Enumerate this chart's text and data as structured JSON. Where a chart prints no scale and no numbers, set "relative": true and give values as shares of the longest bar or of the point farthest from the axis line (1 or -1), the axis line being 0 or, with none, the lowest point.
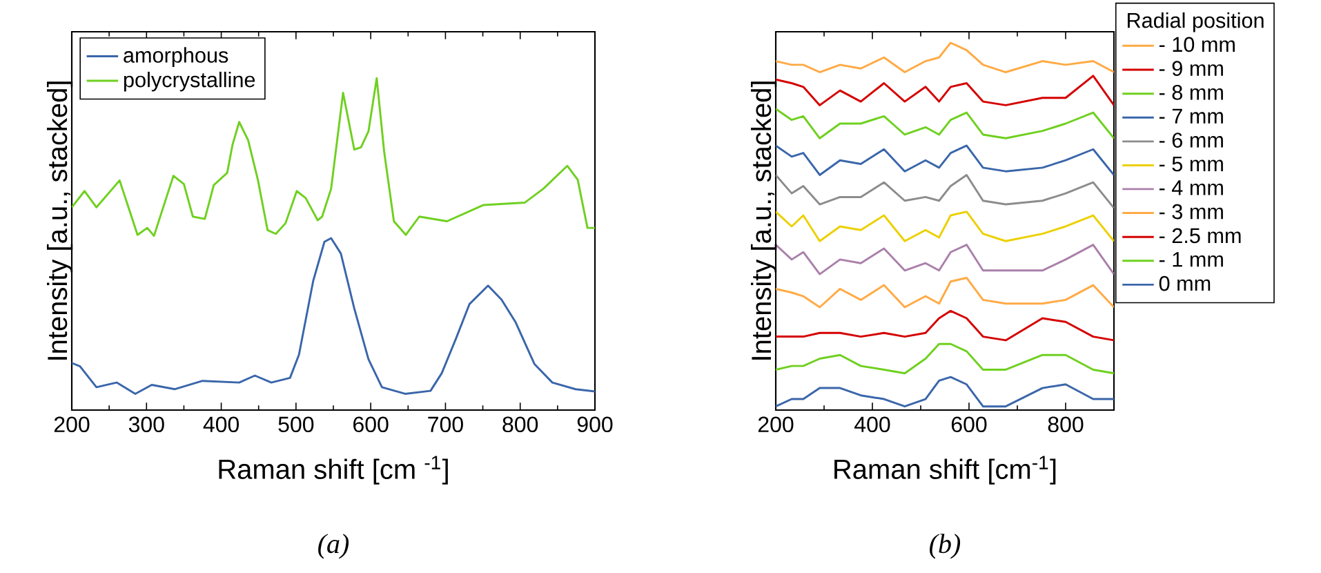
{
  "chart_data": [
    {
      "type": "line",
      "relative": true,
      "xlabel": "Raman shift [cm $^{-1}$]",
      "ylabel": "Intensity [a.u., stacked]",
      "xlim": [
        200,
        900
      ],
      "xticks": [
        200,
        300,
        400,
        500,
        600,
        700,
        800,
        900
      ],
      "legend": "top left",
      "annotations": [
        "(a)"
      ],
      "series": [
        {
          "name": "amorphous",
          "color": "#3a66aa",
          "x": [
            200,
            211,
            233,
            260,
            285,
            307,
            338,
            375,
            424,
            445,
            467,
            492,
            504,
            523,
            538,
            547,
            560,
            578,
            597,
            615,
            646,
            680,
            695,
            714,
            732,
            757,
            775,
            794,
            819,
            843,
            874,
            900
          ],
          "values": [
            0.142,
            0.132,
            0.069,
            0.083,
            0.049,
            0.076,
            0.063,
            0.088,
            0.083,
            0.104,
            0.083,
            0.097,
            0.167,
            0.389,
            0.507,
            0.518,
            0.472,
            0.306,
            0.153,
            0.069,
            0.049,
            0.058,
            0.111,
            0.215,
            0.319,
            0.375,
            0.333,
            0.264,
            0.139,
            0.083,
            0.063,
            0.056
          ]
        },
        {
          "name": "polycrystalline",
          "color": "#6fd020",
          "x": [
            200,
            217,
            233,
            264,
            288,
            301,
            310,
            336,
            350,
            362,
            378,
            390,
            408,
            415,
            424,
            436,
            449,
            462,
            473,
            486,
            501,
            513,
            529,
            535,
            547,
            563,
            578,
            587,
            597,
            608,
            618,
            631,
            647,
            665,
            702,
            751,
            806,
            831,
            863,
            877,
            890,
            900
          ],
          "values": [
            0.611,
            0.66,
            0.611,
            0.692,
            0.528,
            0.549,
            0.525,
            0.706,
            0.681,
            0.583,
            0.576,
            0.678,
            0.715,
            0.799,
            0.868,
            0.813,
            0.694,
            0.542,
            0.531,
            0.563,
            0.66,
            0.639,
            0.572,
            0.583,
            0.667,
            0.956,
            0.785,
            0.792,
            0.84,
            1.0,
            0.778,
            0.569,
            0.528,
            0.583,
            0.569,
            0.618,
            0.625,
            0.667,
            0.736,
            0.694,
            0.549,
            0.549
          ]
        }
      ]
    },
    {
      "type": "line",
      "relative": true,
      "xlabel": "Raman shift [cm$^{-1}$]",
      "ylabel": "Intensity [a.u., stacked]",
      "xlim": [
        200,
        900
      ],
      "xticks": [
        200,
        400,
        600,
        800
      ],
      "legend": "right",
      "legend_title": "Radial position",
      "annotations": [
        "(b)"
      ],
      "x": [
        200,
        233,
        257,
        291,
        333,
        376,
        424,
        467,
        510,
        538,
        562,
        595,
        629,
        676,
        752,
        800,
        857,
        900
      ],
      "series": [
        {
          "name": "- 10 mm",
          "color": "#ffaa44",
          "values": [
            0.95,
            0.94,
            0.94,
            0.92,
            0.94,
            0.93,
            0.96,
            0.92,
            0.95,
            0.96,
            1.0,
            0.98,
            0.94,
            0.92,
            0.95,
            0.94,
            0.95,
            0.92
          ]
        },
        {
          "name": "- 9 mm",
          "color": "#d40000",
          "values": [
            0.9,
            0.89,
            0.88,
            0.83,
            0.87,
            0.84,
            0.89,
            0.84,
            0.88,
            0.84,
            0.88,
            0.89,
            0.84,
            0.83,
            0.85,
            0.85,
            0.91,
            0.83
          ]
        },
        {
          "name": "- 8 mm",
          "color": "#6fd020",
          "values": [
            0.82,
            0.79,
            0.8,
            0.74,
            0.78,
            0.78,
            0.8,
            0.75,
            0.77,
            0.75,
            0.79,
            0.81,
            0.75,
            0.74,
            0.76,
            0.78,
            0.81,
            0.74
          ]
        },
        {
          "name": "- 7 mm",
          "color": "#3a66aa",
          "values": [
            0.72,
            0.69,
            0.7,
            0.64,
            0.68,
            0.67,
            0.71,
            0.65,
            0.68,
            0.66,
            0.7,
            0.72,
            0.66,
            0.65,
            0.66,
            0.68,
            0.71,
            0.64
          ]
        },
        {
          "name": "- 6 mm",
          "color": "#8c8c8c",
          "values": [
            0.64,
            0.59,
            0.61,
            0.56,
            0.58,
            0.58,
            0.62,
            0.57,
            0.58,
            0.57,
            0.61,
            0.64,
            0.57,
            0.56,
            0.57,
            0.59,
            0.62,
            0.55
          ]
        },
        {
          "name": "- 5 mm",
          "color": "#ecd000",
          "values": [
            0.54,
            0.5,
            0.53,
            0.46,
            0.5,
            0.49,
            0.53,
            0.46,
            0.49,
            0.47,
            0.53,
            0.54,
            0.48,
            0.46,
            0.48,
            0.5,
            0.53,
            0.46
          ]
        },
        {
          "name": "- 4 mm",
          "color": "#aa80aa",
          "values": [
            0.45,
            0.41,
            0.43,
            0.37,
            0.41,
            0.4,
            0.44,
            0.38,
            0.4,
            0.38,
            0.43,
            0.45,
            0.38,
            0.38,
            0.38,
            0.41,
            0.45,
            0.37
          ]
        },
        {
          "name": "- 3 mm",
          "color": "#ffaa44",
          "values": [
            0.33,
            0.32,
            0.31,
            0.28,
            0.33,
            0.3,
            0.34,
            0.28,
            0.31,
            0.29,
            0.35,
            0.36,
            0.3,
            0.29,
            0.29,
            0.3,
            0.34,
            0.28
          ]
        },
        {
          "name": "- 2.5 mm",
          "color": "#d40000",
          "values": [
            0.2,
            0.2,
            0.2,
            0.21,
            0.21,
            0.2,
            0.21,
            0.2,
            0.21,
            0.25,
            0.27,
            0.25,
            0.2,
            0.19,
            0.25,
            0.24,
            0.2,
            0.19
          ]
        },
        {
          "name": "- 1 mm",
          "color": "#6fd020",
          "values": [
            0.11,
            0.12,
            0.12,
            0.14,
            0.15,
            0.12,
            0.11,
            0.1,
            0.14,
            0.18,
            0.18,
            0.16,
            0.11,
            0.11,
            0.15,
            0.15,
            0.11,
            0.1
          ]
        },
        {
          "name": "0 mm",
          "color": "#3a66aa",
          "values": [
            0.01,
            0.03,
            0.03,
            0.06,
            0.06,
            0.04,
            0.03,
            0.01,
            0.03,
            0.08,
            0.09,
            0.07,
            0.01,
            0.01,
            0.06,
            0.07,
            0.03,
            0.03
          ]
        }
      ]
    }
  ]
}
